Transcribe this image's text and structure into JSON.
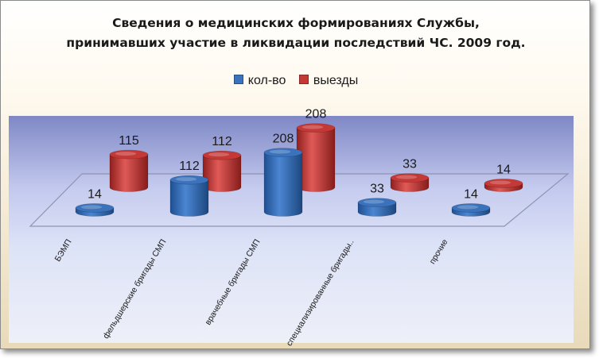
{
  "chart_data": {
    "type": "bar",
    "title_lines": [
      "Сведения о медицинских формированиях Службы,",
      "принимавших участие в ликвидации последствий ЧС. 2009 год."
    ],
    "categories": [
      "БЭМП",
      "фельдшерские бригады СМП",
      "врачебные бригады СМП",
      "специализированные бригады..",
      "прочие"
    ],
    "series": [
      {
        "name": "кол-во",
        "values": [
          14,
          112,
          208,
          33,
          14
        ],
        "color": "#3a72bc"
      },
      {
        "name": "выезды",
        "values": [
          115,
          112,
          208,
          33,
          14
        ],
        "color": "#c43836"
      }
    ],
    "legend_position": "top",
    "three_d": true,
    "data_labels": true
  }
}
